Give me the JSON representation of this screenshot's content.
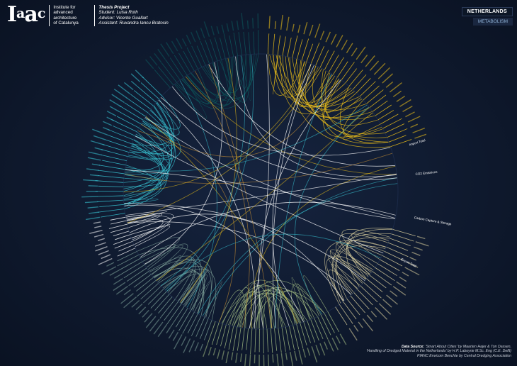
{
  "header": {
    "logo_text": "Iaac",
    "institute_lines": [
      "Institute for",
      "advanced",
      "architecture",
      "of Catalunya"
    ],
    "thesis_title": "Thesis Project",
    "thesis_lines": [
      "Student: Luisa Roth",
      "Advisor: Vicente Guallart",
      "Assistant: Ruxandra Iancu Bratosin"
    ]
  },
  "top_right": {
    "country": "NETHERLANDS",
    "category": "METABOLISM"
  },
  "source": {
    "label": "Data Source:",
    "line1": "'Smart About Cities' by Maarten Hajer & Ton Dassen,",
    "line2": "'Handling of Dredged Material in the Netherlands' by H.P. Laboyrie M.Sc. Eng (C.E. Delft)",
    "line3": "PIANC Envicom Benchte by Central Dredging Association"
  },
  "diagram": {
    "legible_labels": [
      "Import Total",
      "CO2 Emissions",
      "Carbon Capture & Storage",
      "Export Total"
    ],
    "colors": {
      "yellow": "#f2c318",
      "teal": "#0d5a5e",
      "cyan": "#38c7d6",
      "sage": "#7fa39a",
      "olive": "#a4be84",
      "beige": "#ded3a0",
      "white": "#ffffff",
      "orange": "#d99a33"
    }
  }
}
